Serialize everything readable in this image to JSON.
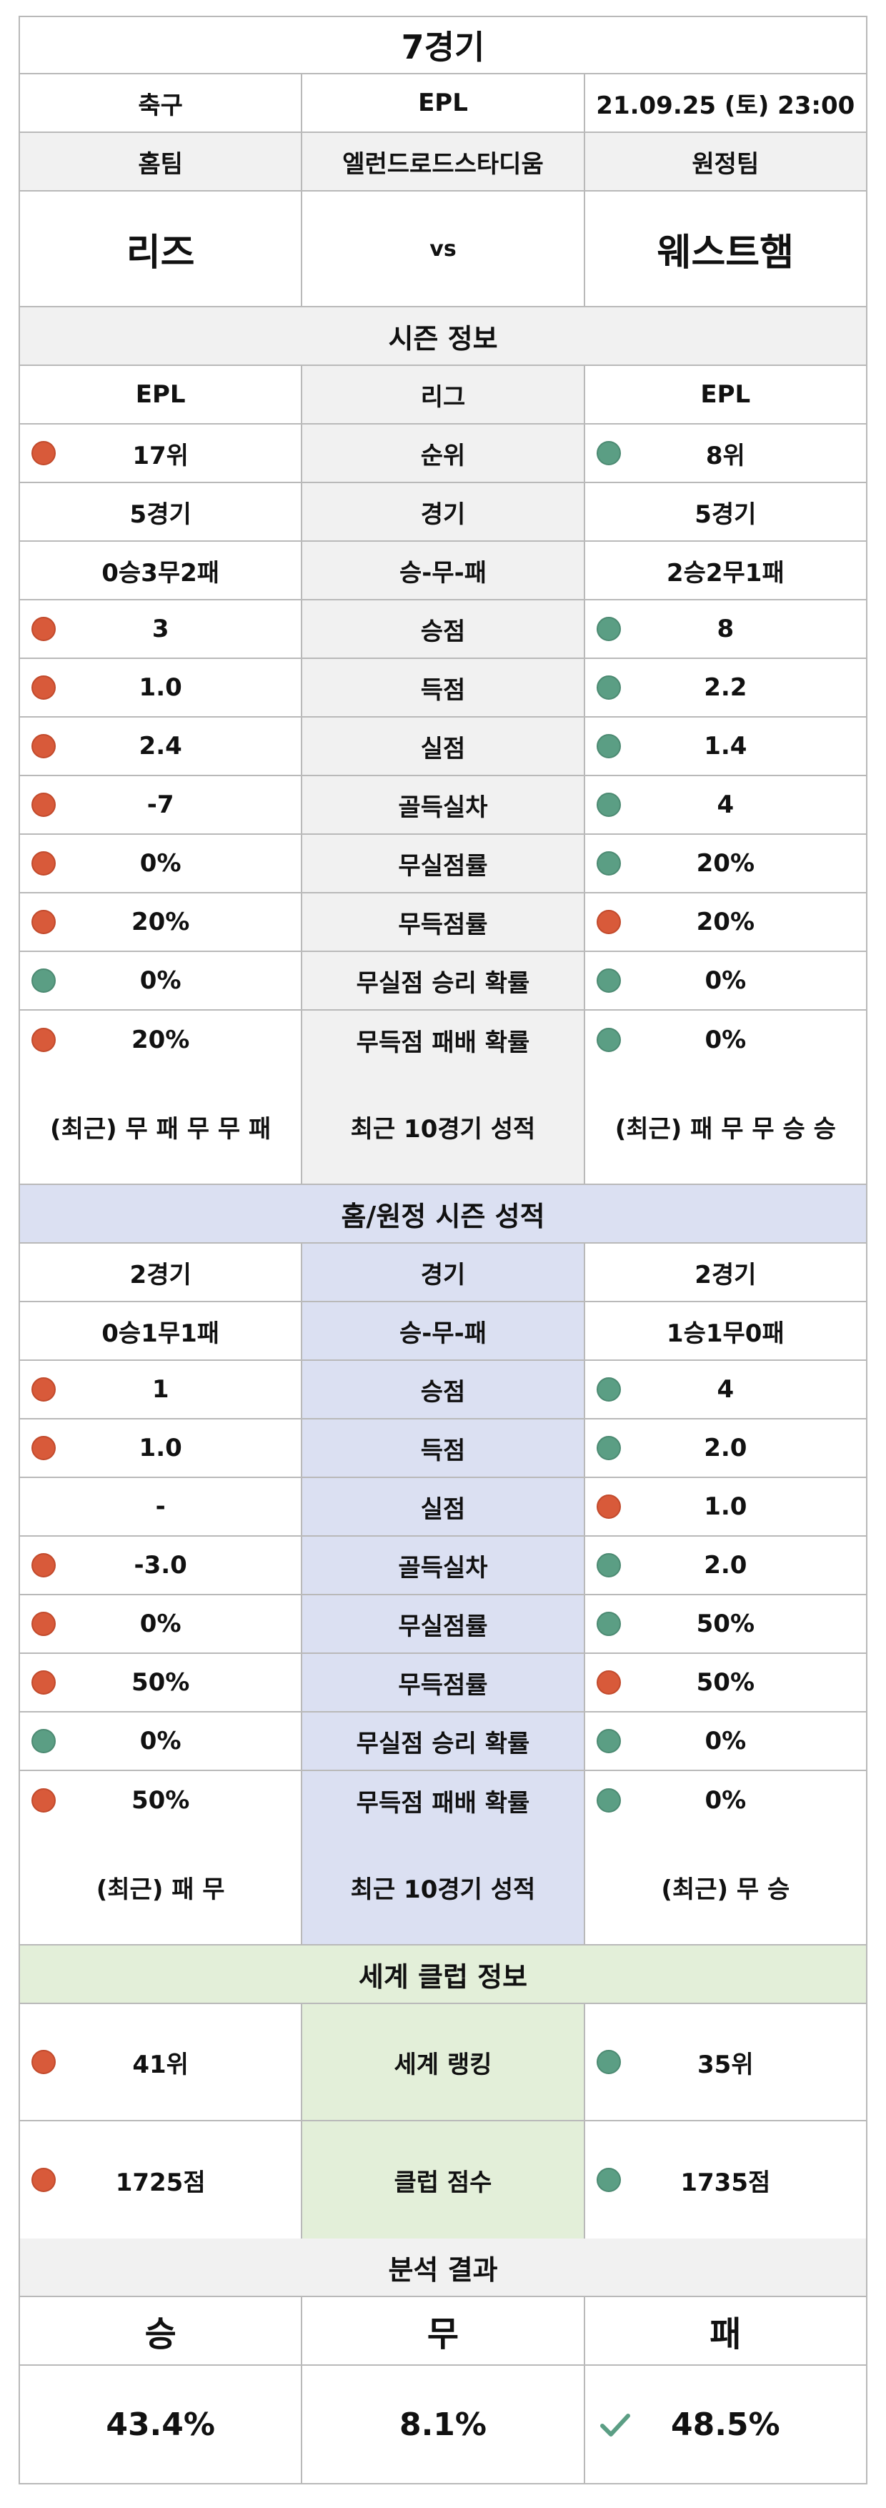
{
  "match": {
    "title": "7경기",
    "sport": "축구",
    "league": "EPL",
    "datetime": "21.09.25 (토) 23:00",
    "home_label": "홈팀",
    "venue": "엘런드로드스타디움",
    "away_label": "원정팀",
    "home_team": "리즈",
    "vs": "vs",
    "away_team": "웨스트햄"
  },
  "season": {
    "header": "시즌 정보",
    "rows": [
      {
        "label": "리그",
        "home": "EPL",
        "away": "EPL",
        "home_dot": "",
        "away_dot": ""
      },
      {
        "label": "순위",
        "home": "17위",
        "away": "8위",
        "home_dot": "red",
        "away_dot": "teal"
      },
      {
        "label": "경기",
        "home": "5경기",
        "away": "5경기",
        "home_dot": "",
        "away_dot": ""
      },
      {
        "label": "승-무-패",
        "home": "0승3무2패",
        "away": "2승2무1패",
        "home_dot": "",
        "away_dot": ""
      },
      {
        "label": "승점",
        "home": "3",
        "away": "8",
        "home_dot": "red",
        "away_dot": "teal"
      },
      {
        "label": "득점",
        "home": "1.0",
        "away": "2.2",
        "home_dot": "red",
        "away_dot": "teal"
      },
      {
        "label": "실점",
        "home": "2.4",
        "away": "1.4",
        "home_dot": "red",
        "away_dot": "teal"
      },
      {
        "label": "골득실차",
        "home": "-7",
        "away": "4",
        "home_dot": "red",
        "away_dot": "teal"
      },
      {
        "label": "무실점률",
        "home": "0%",
        "away": "20%",
        "home_dot": "red",
        "away_dot": "teal"
      },
      {
        "label": "무득점률",
        "home": "20%",
        "away": "20%",
        "home_dot": "red",
        "away_dot": "red"
      },
      {
        "label": "무실점 승리 확률",
        "home": "0%",
        "away": "0%",
        "home_dot": "teal",
        "away_dot": "teal"
      },
      {
        "label": "무득점 패배 확률",
        "home": "20%",
        "away": "0%",
        "home_dot": "red",
        "away_dot": "teal"
      }
    ],
    "recent": {
      "label": "최근 10경기 성적",
      "home": "(최근) 무 패 무 무 패",
      "away": "(최근) 패 무 무 승 승"
    }
  },
  "homeaway": {
    "header": "홈/원정 시즌 성적",
    "rows": [
      {
        "label": "경기",
        "home": "2경기",
        "away": "2경기",
        "home_dot": "",
        "away_dot": ""
      },
      {
        "label": "승-무-패",
        "home": "0승1무1패",
        "away": "1승1무0패",
        "home_dot": "",
        "away_dot": ""
      },
      {
        "label": "승점",
        "home": "1",
        "away": "4",
        "home_dot": "red",
        "away_dot": "teal"
      },
      {
        "label": "득점",
        "home": "1.0",
        "away": "2.0",
        "home_dot": "red",
        "away_dot": "teal"
      },
      {
        "label": "실점",
        "home": "-",
        "away": "1.0",
        "home_dot": "",
        "away_dot": "red"
      },
      {
        "label": "골득실차",
        "home": "-3.0",
        "away": "2.0",
        "home_dot": "red",
        "away_dot": "teal"
      },
      {
        "label": "무실점률",
        "home": "0%",
        "away": "50%",
        "home_dot": "red",
        "away_dot": "teal"
      },
      {
        "label": "무득점률",
        "home": "50%",
        "away": "50%",
        "home_dot": "red",
        "away_dot": "red"
      },
      {
        "label": "무실점 승리 확률",
        "home": "0%",
        "away": "0%",
        "home_dot": "teal",
        "away_dot": "teal"
      },
      {
        "label": "무득점 패배 확률",
        "home": "50%",
        "away": "0%",
        "home_dot": "red",
        "away_dot": "teal"
      }
    ],
    "recent": {
      "label": "최근 10경기 성적",
      "home": "(최근) 패 무",
      "away": "(최근) 무 승"
    }
  },
  "world": {
    "header": "세계 클럽 정보",
    "rows": [
      {
        "label": "세계 랭킹",
        "home": "41위",
        "away": "35위",
        "home_dot": "red",
        "away_dot": "teal"
      },
      {
        "label": "클럽 점수",
        "home": "1725점",
        "away": "1735점",
        "home_dot": "red",
        "away_dot": "teal"
      }
    ]
  },
  "analysis": {
    "header": "분석 결과",
    "win_label": "승",
    "draw_label": "무",
    "loss_label": "패",
    "win_pct": "43.4%",
    "draw_pct": "8.1%",
    "loss_pct": "48.5%",
    "check_icon": "check-icon"
  },
  "colors": {
    "red_dot": "#d85a3a",
    "teal_dot": "#5b9e84",
    "gray_bg": "#f1f1f1",
    "blue_bg": "#dbe0f2",
    "green_bg": "#e3efd9",
    "check": "#5b9e84"
  }
}
